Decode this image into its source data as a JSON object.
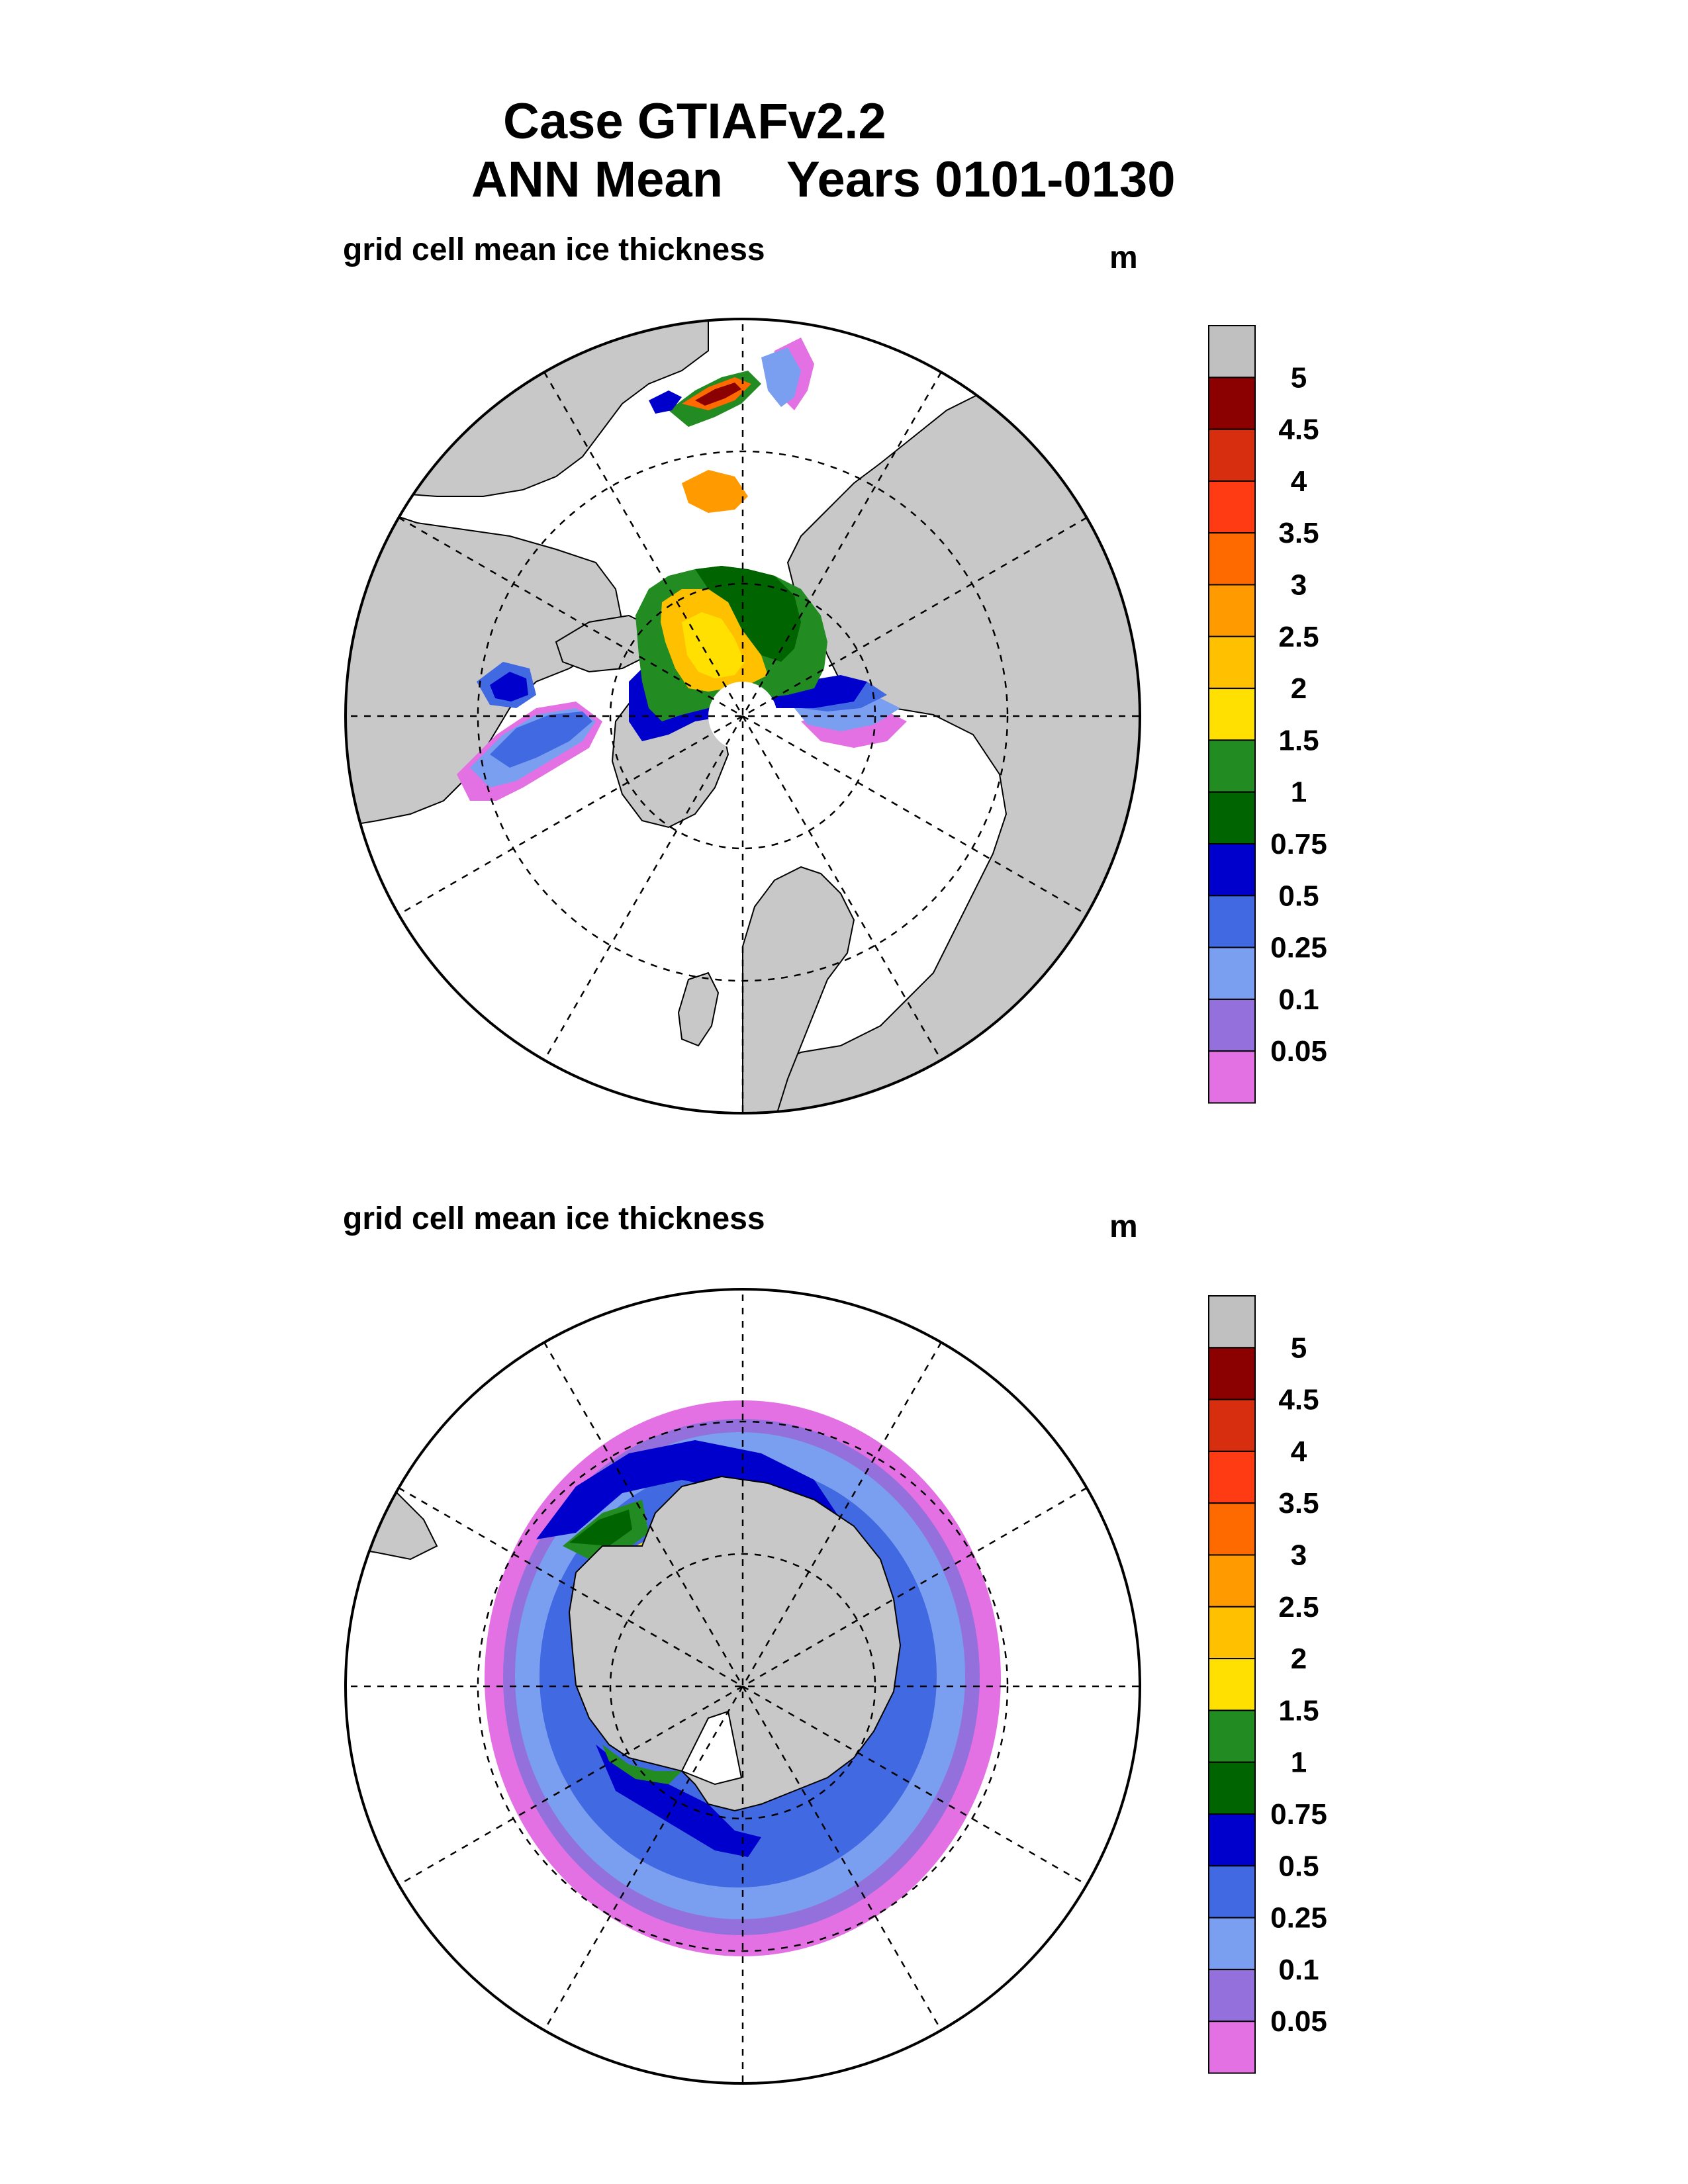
{
  "header": {
    "title_line1": "Case GTIAFv2.2",
    "title_season": "ANN Mean",
    "title_years": "Years 0101-0130"
  },
  "panels": [
    {
      "id": "north",
      "subtitle": "grid cell mean ice thickness",
      "units": "m",
      "hemisphere": "Northern"
    },
    {
      "id": "south",
      "subtitle": "grid cell mean ice thickness",
      "units": "m",
      "hemisphere": "Southern"
    }
  ],
  "legend": {
    "levels": [
      "5",
      "4.5",
      "4",
      "3.5",
      "3",
      "2.5",
      "2",
      "1.5",
      "1",
      "0.75",
      "0.5",
      "0.25",
      "0.1",
      "0.05"
    ],
    "colors": [
      "#c0c0c0",
      "#8b0000",
      "#d72e10",
      "#ff3b14",
      "#ff6a00",
      "#ff9a00",
      "#ffc000",
      "#ffe000",
      "#228b22",
      "#006400",
      "#0000cd",
      "#4169e1",
      "#7b9ff0",
      "#9370db",
      "#e371e3"
    ]
  },
  "colors": {
    "land": "#c8c8c8",
    "ocean": "#ffffff",
    "grid": "#000000"
  }
}
